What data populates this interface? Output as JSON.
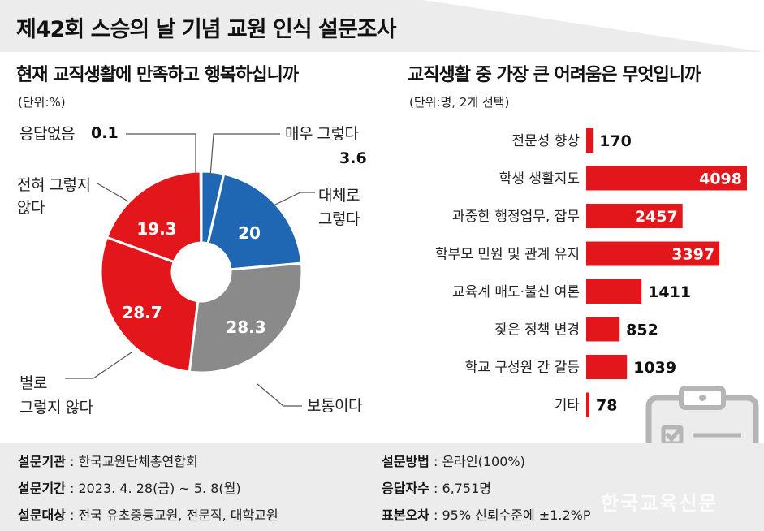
{
  "title": "제42회 스승의 날 기념 교원 인식 설문조사",
  "colors": {
    "red": "#e3161c",
    "blue": "#1f66b3",
    "gray": "#8a8a8a",
    "lightgray": "#b4b4b4",
    "panel": "#ececec"
  },
  "chart_data": [
    {
      "type": "pie",
      "title": "현재 교직생활에 만족하고 행복하십니까",
      "unit": "(단위:%)",
      "donut": true,
      "slices": [
        {
          "label": "매우 그렇다",
          "value": 3.6,
          "color": "#1f66b3"
        },
        {
          "label": "대체로 그렇다",
          "value": 20,
          "color": "#1f66b3"
        },
        {
          "label": "보통이다",
          "value": 28.3,
          "color": "#8a8a8a"
        },
        {
          "label": "별로 그렇지 않다",
          "value": 28.7,
          "color": "#e3161c"
        },
        {
          "label": "전혀 그렇지 않다",
          "value": 19.3,
          "color": "#e3161c"
        },
        {
          "label": "응답없음",
          "value": 0.1,
          "color": "#b4b4b4"
        }
      ],
      "label_texts": {
        "very_yes": "매우 그렇다",
        "mostly_yes_1": "대체로",
        "mostly_yes_2": "그렇다",
        "neutral": "보통이다",
        "mostly_no_1": "별로",
        "mostly_no_2": "그렇지 않다",
        "never_1": "전혀 그렇지",
        "never_2": "않다",
        "no_answer": "응답없음"
      },
      "value_texts": {
        "very_yes": "3.6",
        "mostly_yes": "20",
        "neutral": "28.3",
        "mostly_no": "28.7",
        "never": "19.3",
        "no_answer": "0.1"
      }
    },
    {
      "type": "bar",
      "orientation": "horizontal",
      "title": "교직생활 중 가장 큰 어려움은 무엇입니까",
      "unit": "(단위:명, 2개 선택)",
      "categories": [
        "전문성 향상",
        "학생 생활지도",
        "과중한 행정업무, 잡무",
        "학부모 민원 및 관계 유지",
        "교육계 매도·불신 여론",
        "잦은 정책 변경",
        "학교 구성원 간 갈등",
        "기타"
      ],
      "values": [
        170,
        4098,
        2457,
        3397,
        1411,
        852,
        1039,
        78
      ],
      "value_labels": [
        "170",
        "4098",
        "2457",
        "3397",
        "1411",
        "852",
        "1039",
        "78"
      ],
      "xlim": [
        0,
        4098
      ],
      "color": "#e3161c"
    }
  ],
  "footer": {
    "left": [
      {
        "label": "설문기관",
        "value": ": 한국교원단체총연합회"
      },
      {
        "label": "설문기간",
        "value": ": 2023. 4. 28(금) ~ 5. 8(월)"
      },
      {
        "label": "설문대상",
        "value": ": 전국 유초중등교원, 전문직, 대학교원"
      }
    ],
    "right": [
      {
        "label": "설문방법",
        "value": ": 온라인(100%)"
      },
      {
        "label": "응답자수",
        "value": ": 6,751명"
      },
      {
        "label": "표본오차",
        "value": ": 95% 신뢰수준에 ±1.2%P"
      }
    ]
  },
  "watermark": "한국교육신문"
}
